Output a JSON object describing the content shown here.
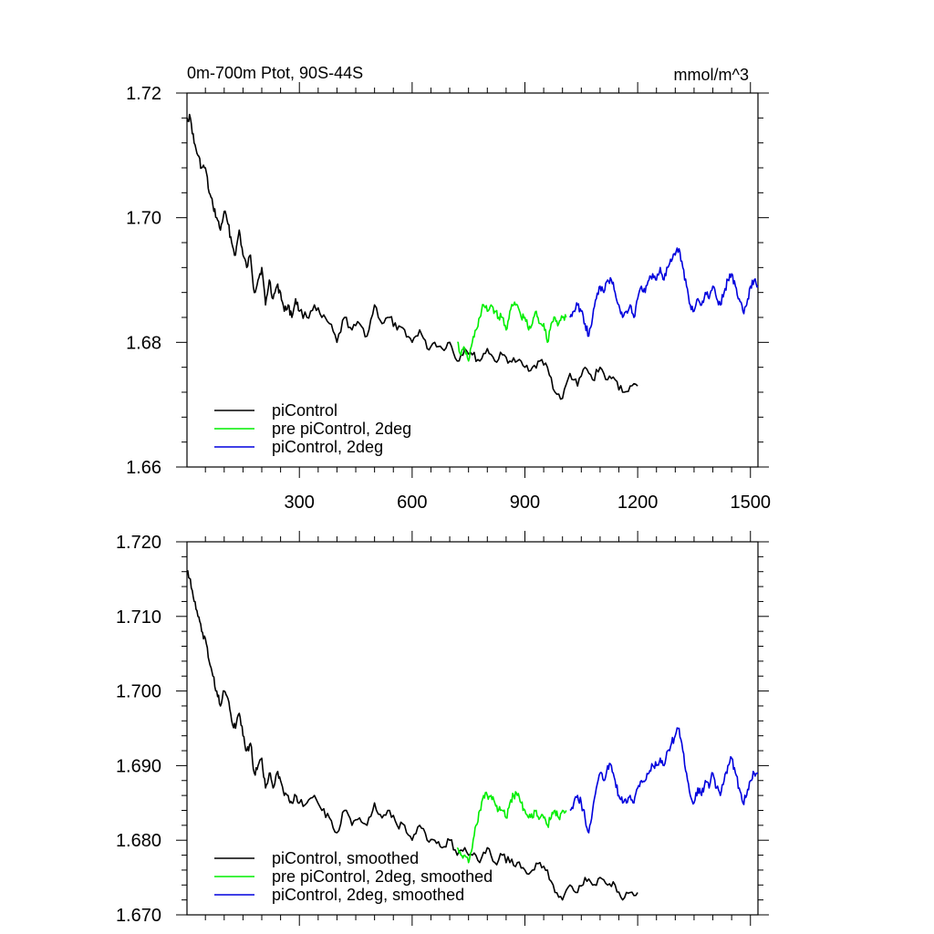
{
  "chart_data": [
    {
      "type": "line",
      "title": "0m-700m Ptot, 90S-44S",
      "units": "mmol/m^3",
      "xlim": [
        1,
        1520
      ],
      "ylim": [
        1.66,
        1.72
      ],
      "x_ticks": [
        300,
        600,
        900,
        1200,
        1500
      ],
      "x_tick_labels": [
        "300",
        "600",
        "900",
        "1200",
        "1500"
      ],
      "y_ticks": [
        1.66,
        1.68,
        1.7,
        1.72
      ],
      "y_tick_labels": [
        "1.66",
        "1.68",
        "1.70",
        "1.72"
      ],
      "legend_position": "bottom-left",
      "series": [
        {
          "name": "piControl",
          "color": "#000000",
          "x": [
            1,
            10,
            20,
            30,
            40,
            50,
            60,
            70,
            80,
            90,
            100,
            110,
            120,
            130,
            140,
            150,
            160,
            170,
            180,
            190,
            200,
            210,
            220,
            230,
            240,
            250,
            260,
            270,
            280,
            290,
            300,
            320,
            340,
            360,
            380,
            400,
            420,
            440,
            460,
            480,
            500,
            520,
            540,
            560,
            580,
            600,
            620,
            640,
            660,
            680,
            700,
            720,
            740,
            760,
            780,
            800,
            820,
            840,
            860,
            880,
            900,
            920,
            940,
            960,
            980,
            1000,
            1020,
            1040,
            1060,
            1080,
            1100,
            1120,
            1140,
            1160,
            1180,
            1200
          ],
          "y": [
            1.716,
            1.716,
            1.712,
            1.71,
            1.708,
            1.708,
            1.704,
            1.702,
            1.7,
            1.698,
            1.701,
            1.699,
            1.696,
            1.694,
            1.698,
            1.694,
            1.692,
            1.694,
            1.688,
            1.69,
            1.692,
            1.686,
            1.69,
            1.687,
            1.689,
            1.688,
            1.685,
            1.686,
            1.684,
            1.687,
            1.685,
            1.684,
            1.686,
            1.684,
            1.683,
            1.68,
            1.684,
            1.682,
            1.683,
            1.681,
            1.686,
            1.683,
            1.684,
            1.682,
            1.682,
            1.68,
            1.682,
            1.679,
            1.68,
            1.679,
            1.68,
            1.677,
            1.679,
            1.678,
            1.677,
            1.679,
            1.677,
            1.678,
            1.677,
            1.677,
            1.676,
            1.676,
            1.677,
            1.676,
            1.672,
            1.671,
            1.675,
            1.673,
            1.676,
            1.674,
            1.676,
            1.674,
            1.674,
            1.672,
            1.673,
            1.673
          ]
        },
        {
          "name": "pre piControl, 2deg",
          "color": "#00ee00",
          "x": [
            720,
            730,
            740,
            750,
            760,
            770,
            780,
            790,
            800,
            810,
            820,
            830,
            840,
            850,
            860,
            870,
            880,
            890,
            900,
            910,
            920,
            930,
            940,
            950,
            960,
            970,
            980,
            990,
            1000,
            1010
          ],
          "y": [
            1.68,
            1.678,
            1.679,
            1.677,
            1.68,
            1.682,
            1.684,
            1.686,
            1.685,
            1.686,
            1.685,
            1.684,
            1.684,
            1.682,
            1.685,
            1.686,
            1.686,
            1.684,
            1.684,
            1.682,
            1.683,
            1.685,
            1.683,
            1.683,
            1.68,
            1.683,
            1.684,
            1.683,
            1.684,
            1.684
          ]
        },
        {
          "name": "piControl, 2deg",
          "color": "#0000dd",
          "x": [
            1020,
            1030,
            1040,
            1050,
            1060,
            1070,
            1080,
            1090,
            1100,
            1110,
            1120,
            1130,
            1140,
            1150,
            1160,
            1170,
            1180,
            1190,
            1200,
            1210,
            1220,
            1230,
            1240,
            1250,
            1260,
            1270,
            1280,
            1290,
            1300,
            1310,
            1320,
            1330,
            1340,
            1350,
            1360,
            1370,
            1380,
            1390,
            1400,
            1410,
            1420,
            1430,
            1440,
            1450,
            1460,
            1470,
            1480,
            1490,
            1500,
            1510,
            1520
          ],
          "y": [
            1.684,
            1.685,
            1.686,
            1.685,
            1.683,
            1.681,
            1.684,
            1.687,
            1.689,
            1.688,
            1.69,
            1.69,
            1.688,
            1.686,
            1.684,
            1.685,
            1.686,
            1.684,
            1.687,
            1.689,
            1.688,
            1.69,
            1.691,
            1.69,
            1.692,
            1.69,
            1.692,
            1.693,
            1.694,
            1.695,
            1.692,
            1.689,
            1.686,
            1.685,
            1.687,
            1.686,
            1.688,
            1.687,
            1.689,
            1.687,
            1.686,
            1.688,
            1.69,
            1.691,
            1.689,
            1.687,
            1.685,
            1.686,
            1.689,
            1.69,
            1.689
          ]
        }
      ]
    },
    {
      "type": "line",
      "title": "",
      "xlim": [
        1,
        1520
      ],
      "ylim": [
        1.67,
        1.72
      ],
      "x_ticks": [
        300,
        600,
        900,
        1200,
        1500
      ],
      "y_ticks": [
        1.67,
        1.68,
        1.69,
        1.7,
        1.71,
        1.72
      ],
      "y_tick_labels": [
        "1.670",
        "1.680",
        "1.690",
        "1.700",
        "1.710",
        "1.720"
      ],
      "legend_position": "bottom-left",
      "series": [
        {
          "name": "piControl, smoothed",
          "color": "#000000",
          "x": [
            1,
            10,
            20,
            30,
            40,
            50,
            60,
            70,
            80,
            90,
            100,
            110,
            120,
            130,
            140,
            150,
            160,
            170,
            180,
            190,
            200,
            210,
            220,
            230,
            240,
            250,
            260,
            270,
            280,
            290,
            300,
            320,
            340,
            360,
            380,
            400,
            420,
            440,
            460,
            480,
            500,
            520,
            540,
            560,
            580,
            600,
            620,
            640,
            660,
            680,
            700,
            720,
            740,
            760,
            780,
            800,
            820,
            840,
            860,
            880,
            900,
            920,
            940,
            960,
            980,
            1000,
            1020,
            1040,
            1060,
            1080,
            1100,
            1120,
            1140,
            1160,
            1180,
            1200
          ],
          "y": [
            1.716,
            1.715,
            1.712,
            1.71,
            1.708,
            1.707,
            1.704,
            1.702,
            1.7,
            1.698,
            1.7,
            1.699,
            1.696,
            1.695,
            1.697,
            1.694,
            1.692,
            1.693,
            1.689,
            1.69,
            1.691,
            1.687,
            1.689,
            1.687,
            1.689,
            1.688,
            1.686,
            1.686,
            1.685,
            1.686,
            1.685,
            1.685,
            1.686,
            1.684,
            1.683,
            1.681,
            1.684,
            1.682,
            1.683,
            1.682,
            1.685,
            1.683,
            1.684,
            1.682,
            1.682,
            1.68,
            1.682,
            1.68,
            1.68,
            1.679,
            1.68,
            1.678,
            1.679,
            1.678,
            1.677,
            1.679,
            1.677,
            1.678,
            1.677,
            1.677,
            1.676,
            1.676,
            1.677,
            1.676,
            1.673,
            1.672,
            1.674,
            1.673,
            1.675,
            1.674,
            1.675,
            1.674,
            1.674,
            1.672,
            1.673,
            1.673
          ]
        },
        {
          "name": "pre piControl, 2deg, smoothed",
          "color": "#00ee00",
          "x": [
            720,
            730,
            740,
            750,
            760,
            770,
            780,
            790,
            800,
            810,
            820,
            830,
            840,
            850,
            860,
            870,
            880,
            890,
            900,
            910,
            920,
            930,
            940,
            950,
            960,
            970,
            980,
            990,
            1000,
            1010
          ],
          "y": [
            1.679,
            1.678,
            1.678,
            1.677,
            1.679,
            1.682,
            1.684,
            1.686,
            1.686,
            1.686,
            1.685,
            1.684,
            1.684,
            1.683,
            1.685,
            1.686,
            1.686,
            1.685,
            1.684,
            1.683,
            1.683,
            1.684,
            1.683,
            1.683,
            1.682,
            1.683,
            1.684,
            1.683,
            1.684,
            1.684
          ]
        },
        {
          "name": "piControl, 2deg, smoothed",
          "color": "#0000dd",
          "x": [
            1020,
            1030,
            1040,
            1050,
            1060,
            1070,
            1080,
            1090,
            1100,
            1110,
            1120,
            1130,
            1140,
            1150,
            1160,
            1170,
            1180,
            1190,
            1200,
            1210,
            1220,
            1230,
            1240,
            1250,
            1260,
            1270,
            1280,
            1290,
            1300,
            1310,
            1320,
            1330,
            1340,
            1350,
            1360,
            1370,
            1380,
            1390,
            1400,
            1410,
            1420,
            1430,
            1440,
            1450,
            1460,
            1470,
            1480,
            1490,
            1500,
            1510,
            1520
          ],
          "y": [
            1.684,
            1.685,
            1.686,
            1.685,
            1.683,
            1.681,
            1.684,
            1.687,
            1.689,
            1.688,
            1.69,
            1.69,
            1.688,
            1.686,
            1.685,
            1.685,
            1.686,
            1.685,
            1.687,
            1.688,
            1.688,
            1.689,
            1.69,
            1.69,
            1.691,
            1.69,
            1.692,
            1.693,
            1.694,
            1.695,
            1.692,
            1.689,
            1.686,
            1.685,
            1.687,
            1.686,
            1.688,
            1.687,
            1.689,
            1.687,
            1.686,
            1.688,
            1.69,
            1.691,
            1.689,
            1.687,
            1.685,
            1.686,
            1.688,
            1.689,
            1.689
          ]
        }
      ]
    }
  ]
}
